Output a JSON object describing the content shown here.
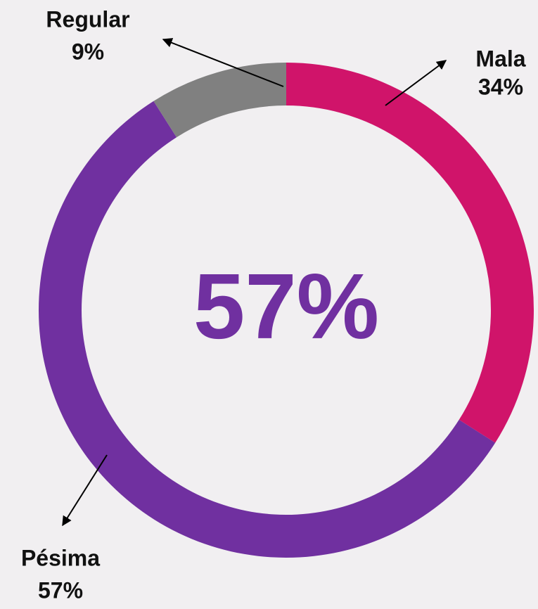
{
  "chart_data": {
    "type": "donut",
    "center_label": "57%",
    "categories": [
      "Mala",
      "Pésima",
      "Regular"
    ],
    "values": [
      34,
      57,
      9
    ],
    "value_labels": [
      "34%",
      "57%",
      "9%"
    ],
    "colors": [
      "#d0146a",
      "#7030a0",
      "#808080"
    ]
  }
}
